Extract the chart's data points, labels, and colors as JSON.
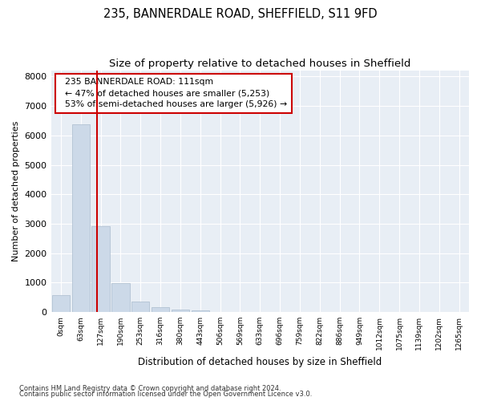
{
  "title1": "235, BANNERDALE ROAD, SHEFFIELD, S11 9FD",
  "title2": "Size of property relative to detached houses in Sheffield",
  "xlabel": "Distribution of detached houses by size in Sheffield",
  "ylabel": "Number of detached properties",
  "bar_labels": [
    "0sqm",
    "63sqm",
    "127sqm",
    "190sqm",
    "253sqm",
    "316sqm",
    "380sqm",
    "443sqm",
    "506sqm",
    "569sqm",
    "633sqm",
    "696sqm",
    "759sqm",
    "822sqm",
    "886sqm",
    "949sqm",
    "1012sqm",
    "1075sqm",
    "1139sqm",
    "1202sqm",
    "1265sqm"
  ],
  "bar_values": [
    570,
    6380,
    2920,
    975,
    360,
    160,
    100,
    70,
    0,
    0,
    0,
    0,
    0,
    0,
    0,
    0,
    0,
    0,
    0,
    0,
    0
  ],
  "bar_color": "#ccd9e8",
  "bar_edge_color": "#aabcce",
  "red_line_x": 1.82,
  "annotation_text": "  235 BANNERDALE ROAD: 111sqm\n  ← 47% of detached houses are smaller (5,253)\n  53% of semi-detached houses are larger (5,926) →",
  "annotation_box_color": "#ffffff",
  "annotation_border_color": "#cc0000",
  "ylim": [
    0,
    8200
  ],
  "yticks": [
    0,
    1000,
    2000,
    3000,
    4000,
    5000,
    6000,
    7000,
    8000
  ],
  "footer1": "Contains HM Land Registry data © Crown copyright and database right 2024.",
  "footer2": "Contains public sector information licensed under the Open Government Licence v3.0.",
  "bg_color": "#ffffff",
  "plot_bg_color": "#e8eef5",
  "grid_color": "#ffffff",
  "title1_fontsize": 10.5,
  "title2_fontsize": 9.5
}
